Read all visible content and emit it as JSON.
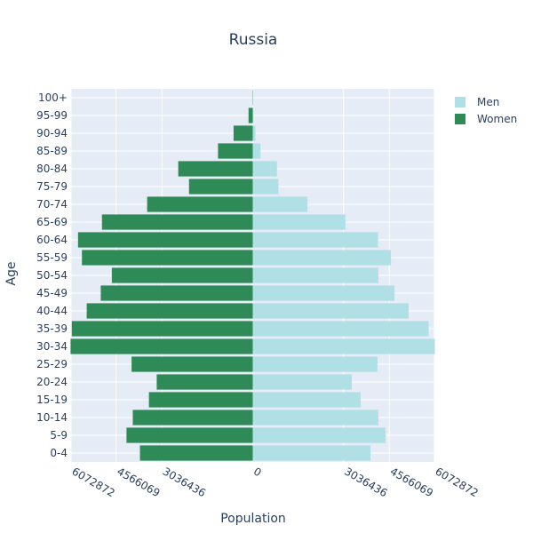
{
  "chart_data": {
    "type": "bar",
    "orientation": "horizontal",
    "title": "Russia",
    "xlabel": "Population",
    "ylabel": "Age",
    "categories": [
      "0-4",
      "5-9",
      "10-14",
      "15-19",
      "20-24",
      "25-29",
      "30-34",
      "35-39",
      "40-44",
      "45-49",
      "50-54",
      "55-59",
      "60-64",
      "65-69",
      "70-74",
      "75-79",
      "80-84",
      "85-89",
      "90-94",
      "95-99",
      "100+"
    ],
    "series": [
      {
        "name": "Men",
        "color": "#b0e0e6",
        "values": [
          3940000,
          4440000,
          4200000,
          3610000,
          3310000,
          4170000,
          6090000,
          5880000,
          5210000,
          4740000,
          4200000,
          4620000,
          4190000,
          3100000,
          1830000,
          860000,
          810000,
          260000,
          90000,
          20000,
          5000
        ]
      },
      {
        "name": "Women",
        "color": "#2e8b57",
        "values": [
          3770000,
          4220000,
          4010000,
          3470000,
          3210000,
          4050000,
          6090000,
          6050000,
          5550000,
          5080000,
          4710000,
          5710000,
          5840000,
          5040000,
          3530000,
          2130000,
          2490000,
          1160000,
          640000,
          140000,
          10000
        ]
      }
    ],
    "x_tick_values": [
      -6072872,
      -4566069,
      -3036436,
      0,
      3036436,
      4566069,
      6072872
    ],
    "x_tick_labels": [
      "6072872",
      "4566069",
      "3036436",
      "0",
      "3036436",
      "4566069",
      "6072872"
    ],
    "xlim": [
      -6072872,
      6072872
    ],
    "grid": true,
    "legend_position": "top-right"
  }
}
